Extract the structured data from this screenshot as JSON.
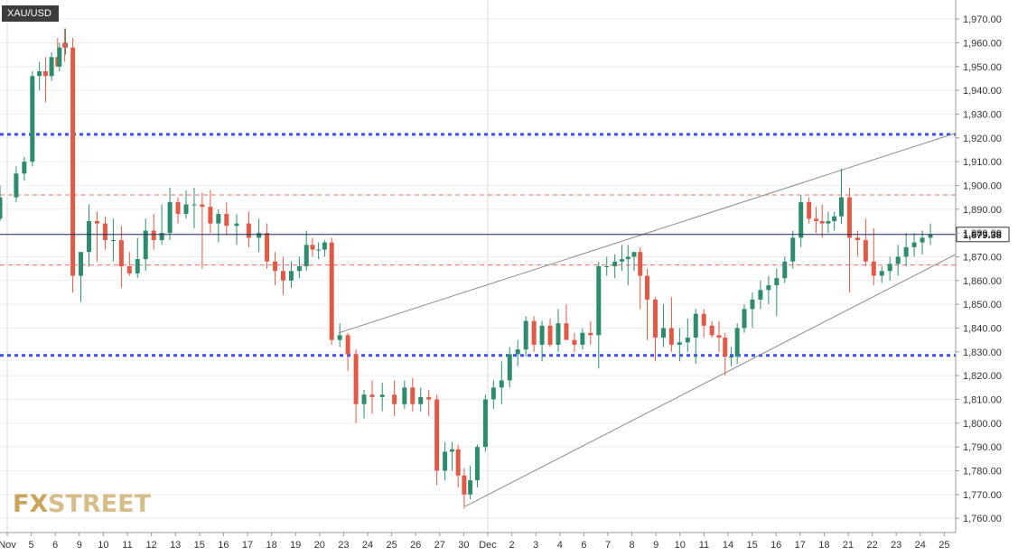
{
  "symbol": "XAU/USD",
  "last_price": "1,879.38",
  "watermark": {
    "fx": "FX",
    "street": "STREET"
  },
  "colors": {
    "up": "#2e8b6e",
    "down": "#e05a47",
    "blue_level": "#3d4ef5",
    "red_level": "#f07060",
    "trend": "#8a8a8a",
    "last": "#1e2a5a"
  },
  "chart_data": {
    "type": "candlestick",
    "ylim": [
      1754,
      1978
    ],
    "y_ticks": [
      "1,760.00",
      "1,770.00",
      "1,780.00",
      "1,790.00",
      "1,800.00",
      "1,810.00",
      "1,820.00",
      "1,830.00",
      "1,840.00",
      "1,850.00",
      "1,860.00",
      "1,870.00",
      "1,880.00",
      "1,890.00",
      "1,900.00",
      "1,910.00",
      "1,920.00",
      "1,930.00",
      "1,940.00",
      "1,950.00",
      "1,960.00",
      "1,970.00"
    ],
    "x_ticks": [
      "Nov",
      "5",
      "6",
      "9",
      "10",
      "11",
      "12",
      "13",
      "15",
      "16",
      "17",
      "18",
      "19",
      "20",
      "23",
      "24",
      "25",
      "26",
      "27",
      "30",
      "Dec",
      "2",
      "3",
      "4",
      "6",
      "7",
      "8",
      "9",
      "10",
      "11",
      "14",
      "15",
      "16",
      "17",
      "18",
      "21",
      "22",
      "23",
      "24",
      "25"
    ],
    "horizontal_levels": [
      {
        "value": 1921.5,
        "style": "blue-dotted"
      },
      {
        "value": 1828.5,
        "style": "blue-dotted"
      },
      {
        "value": 1896,
        "style": "red-dashed"
      },
      {
        "value": 1866.5,
        "style": "red-dashed"
      }
    ],
    "trendlines": [
      {
        "from": [
          "Nov 23",
          1838
        ],
        "to": [
          "Dec 25",
          1922
        ]
      },
      {
        "from": [
          "Nov 30",
          1765
        ],
        "to": [
          "Dec 25",
          1871
        ]
      }
    ],
    "candles": [
      {
        "t": "Nov 4",
        "o": 1886,
        "h": 1900,
        "l": 1885,
        "c": 1895
      },
      {
        "t": "Nov 5",
        "o": 1895,
        "h": 1908,
        "l": 1893,
        "c": 1905
      },
      {
        "t": "Nov 5",
        "o": 1905,
        "h": 1912,
        "l": 1902,
        "c": 1910
      },
      {
        "t": "Nov 5",
        "o": 1910,
        "h": 1948,
        "l": 1908,
        "c": 1946
      },
      {
        "t": "Nov 6",
        "o": 1946,
        "h": 1952,
        "l": 1940,
        "c": 1948
      },
      {
        "t": "Nov 6",
        "o": 1948,
        "h": 1954,
        "l": 1935,
        "c": 1946
      },
      {
        "t": "Nov 6",
        "o": 1946,
        "h": 1956,
        "l": 1944,
        "c": 1954
      },
      {
        "t": "Nov 6",
        "o": 1954,
        "h": 1962,
        "l": 1950,
        "c": 1950
      },
      {
        "t": "Nov 7",
        "o": 1950,
        "h": 1960,
        "l": 1948,
        "c": 1958
      },
      {
        "t": "Nov 8",
        "o": 1958,
        "h": 1966,
        "l": 1955,
        "c": 1960
      },
      {
        "t": "Nov 9",
        "o": 1960,
        "h": 1966,
        "l": 1952,
        "c": 1958
      },
      {
        "t": "Nov 9",
        "o": 1958,
        "h": 1962,
        "l": 1855,
        "c": 1862
      },
      {
        "t": "Nov 9",
        "o": 1862,
        "h": 1872,
        "l": 1851,
        "c": 1872
      },
      {
        "t": "Nov 10",
        "o": 1872,
        "h": 1892,
        "l": 1866,
        "c": 1885
      },
      {
        "t": "Nov 10",
        "o": 1885,
        "h": 1889,
        "l": 1868,
        "c": 1884
      },
      {
        "t": "Nov 10",
        "o": 1884,
        "h": 1887,
        "l": 1873,
        "c": 1877
      },
      {
        "t": "Nov 11",
        "o": 1877,
        "h": 1886,
        "l": 1868,
        "c": 1877
      },
      {
        "t": "Nov 11",
        "o": 1877,
        "h": 1883,
        "l": 1857,
        "c": 1866
      },
      {
        "t": "Nov 11",
        "o": 1866,
        "h": 1872,
        "l": 1862,
        "c": 1863
      },
      {
        "t": "Nov 12",
        "o": 1863,
        "h": 1878,
        "l": 1861,
        "c": 1869
      },
      {
        "t": "Nov 12",
        "o": 1869,
        "h": 1886,
        "l": 1864,
        "c": 1881
      },
      {
        "t": "Nov 12",
        "o": 1881,
        "h": 1888,
        "l": 1873,
        "c": 1877
      },
      {
        "t": "Nov 13",
        "o": 1877,
        "h": 1892,
        "l": 1875,
        "c": 1880
      },
      {
        "t": "Nov 13",
        "o": 1880,
        "h": 1899,
        "l": 1877,
        "c": 1893
      },
      {
        "t": "Nov 13",
        "o": 1893,
        "h": 1895,
        "l": 1884,
        "c": 1888
      },
      {
        "t": "Nov 15",
        "o": 1888,
        "h": 1898,
        "l": 1886,
        "c": 1892
      },
      {
        "t": "Nov 15",
        "o": 1892,
        "h": 1899,
        "l": 1882,
        "c": 1892
      },
      {
        "t": "Nov 15",
        "o": 1892,
        "h": 1897,
        "l": 1865,
        "c": 1891
      },
      {
        "t": "Nov 16",
        "o": 1891,
        "h": 1898,
        "l": 1880,
        "c": 1884
      },
      {
        "t": "Nov 16",
        "o": 1884,
        "h": 1890,
        "l": 1876,
        "c": 1888
      },
      {
        "t": "Nov 16",
        "o": 1888,
        "h": 1893,
        "l": 1879,
        "c": 1883
      },
      {
        "t": "Nov 17",
        "o": 1883,
        "h": 1888,
        "l": 1875,
        "c": 1884
      },
      {
        "t": "Nov 17",
        "o": 1884,
        "h": 1889,
        "l": 1874,
        "c": 1878
      },
      {
        "t": "Nov 18",
        "o": 1878,
        "h": 1886,
        "l": 1872,
        "c": 1880
      },
      {
        "t": "Nov 18",
        "o": 1880,
        "h": 1884,
        "l": 1865,
        "c": 1868
      },
      {
        "t": "Nov 18",
        "o": 1868,
        "h": 1872,
        "l": 1858,
        "c": 1864
      },
      {
        "t": "Nov 19",
        "o": 1864,
        "h": 1870,
        "l": 1854,
        "c": 1860
      },
      {
        "t": "Nov 19",
        "o": 1860,
        "h": 1868,
        "l": 1857,
        "c": 1864
      },
      {
        "t": "Nov 19",
        "o": 1864,
        "h": 1870,
        "l": 1861,
        "c": 1866
      },
      {
        "t": "Nov 20",
        "o": 1866,
        "h": 1881,
        "l": 1864,
        "c": 1875
      },
      {
        "t": "Nov 20",
        "o": 1875,
        "h": 1878,
        "l": 1870,
        "c": 1873
      },
      {
        "t": "Nov 20",
        "o": 1873,
        "h": 1876,
        "l": 1869,
        "c": 1873
      },
      {
        "t": "Nov 20",
        "o": 1873,
        "h": 1877,
        "l": 1870,
        "c": 1876
      },
      {
        "t": "Nov 23",
        "o": 1876,
        "h": 1878,
        "l": 1833,
        "c": 1835
      },
      {
        "t": "Nov 23",
        "o": 1835,
        "h": 1842,
        "l": 1832,
        "c": 1837
      },
      {
        "t": "Nov 23",
        "o": 1837,
        "h": 1838,
        "l": 1822,
        "c": 1829
      },
      {
        "t": "Nov 24",
        "o": 1829,
        "h": 1831,
        "l": 1800,
        "c": 1808
      },
      {
        "t": "Nov 24",
        "o": 1808,
        "h": 1814,
        "l": 1802,
        "c": 1812
      },
      {
        "t": "Nov 24",
        "o": 1812,
        "h": 1818,
        "l": 1804,
        "c": 1811
      },
      {
        "t": "Nov 25",
        "o": 1811,
        "h": 1817,
        "l": 1805,
        "c": 1812
      },
      {
        "t": "Nov 25",
        "o": 1812,
        "h": 1818,
        "l": 1803,
        "c": 1808
      },
      {
        "t": "Nov 26",
        "o": 1808,
        "h": 1818,
        "l": 1806,
        "c": 1815
      },
      {
        "t": "Nov 26",
        "o": 1815,
        "h": 1819,
        "l": 1805,
        "c": 1808
      },
      {
        "t": "Nov 26",
        "o": 1808,
        "h": 1815,
        "l": 1805,
        "c": 1811
      },
      {
        "t": "Nov 27",
        "o": 1811,
        "h": 1814,
        "l": 1803,
        "c": 1810
      },
      {
        "t": "Nov 27",
        "o": 1810,
        "h": 1812,
        "l": 1774,
        "c": 1780
      },
      {
        "t": "Nov 27",
        "o": 1780,
        "h": 1792,
        "l": 1776,
        "c": 1788
      },
      {
        "t": "Nov 30",
        "o": 1788,
        "h": 1792,
        "l": 1780,
        "c": 1789
      },
      {
        "t": "Nov 30",
        "o": 1789,
        "h": 1791,
        "l": 1773,
        "c": 1778
      },
      {
        "t": "Nov 30",
        "o": 1778,
        "h": 1781,
        "l": 1764,
        "c": 1770
      },
      {
        "t": "Nov 30",
        "o": 1770,
        "h": 1782,
        "l": 1768,
        "c": 1776
      },
      {
        "t": "Dec 1",
        "o": 1776,
        "h": 1791,
        "l": 1773,
        "c": 1790
      },
      {
        "t": "Dec 1",
        "o": 1790,
        "h": 1812,
        "l": 1788,
        "c": 1810
      },
      {
        "t": "Dec 1",
        "o": 1810,
        "h": 1818,
        "l": 1806,
        "c": 1815
      },
      {
        "t": "Dec 2",
        "o": 1815,
        "h": 1826,
        "l": 1808,
        "c": 1818
      },
      {
        "t": "Dec 2",
        "o": 1818,
        "h": 1832,
        "l": 1815,
        "c": 1829
      },
      {
        "t": "Dec 2",
        "o": 1829,
        "h": 1835,
        "l": 1824,
        "c": 1831
      },
      {
        "t": "Dec 3",
        "o": 1831,
        "h": 1845,
        "l": 1828,
        "c": 1843
      },
      {
        "t": "Dec 3",
        "o": 1843,
        "h": 1845,
        "l": 1830,
        "c": 1833
      },
      {
        "t": "Dec 3",
        "o": 1833,
        "h": 1843,
        "l": 1826,
        "c": 1841
      },
      {
        "t": "Dec 4",
        "o": 1841,
        "h": 1844,
        "l": 1832,
        "c": 1833
      },
      {
        "t": "Dec 4",
        "o": 1833,
        "h": 1848,
        "l": 1830,
        "c": 1842
      },
      {
        "t": "Dec 4",
        "o": 1842,
        "h": 1850,
        "l": 1836,
        "c": 1835
      },
      {
        "t": "Dec 6",
        "o": 1835,
        "h": 1838,
        "l": 1830,
        "c": 1833
      },
      {
        "t": "Dec 6",
        "o": 1833,
        "h": 1840,
        "l": 1831,
        "c": 1838
      },
      {
        "t": "Dec 6",
        "o": 1838,
        "h": 1843,
        "l": 1833,
        "c": 1837
      },
      {
        "t": "Dec 7",
        "o": 1837,
        "h": 1868,
        "l": 1823,
        "c": 1866
      },
      {
        "t": "Dec 7",
        "o": 1866,
        "h": 1870,
        "l": 1862,
        "c": 1866
      },
      {
        "t": "Dec 7",
        "o": 1866,
        "h": 1871,
        "l": 1861,
        "c": 1868
      },
      {
        "t": "Dec 8",
        "o": 1868,
        "h": 1875,
        "l": 1864,
        "c": 1869
      },
      {
        "t": "Dec 8",
        "o": 1869,
        "h": 1875,
        "l": 1858,
        "c": 1870
      },
      {
        "t": "Dec 8",
        "o": 1870,
        "h": 1872,
        "l": 1864,
        "c": 1872
      },
      {
        "t": "Dec 8",
        "o": 1872,
        "h": 1874,
        "l": 1848,
        "c": 1862
      },
      {
        "t": "Dec 9",
        "o": 1862,
        "h": 1865,
        "l": 1835,
        "c": 1852
      },
      {
        "t": "Dec 9",
        "o": 1852,
        "h": 1853,
        "l": 1826,
        "c": 1836
      },
      {
        "t": "Dec 9",
        "o": 1836,
        "h": 1850,
        "l": 1832,
        "c": 1840
      },
      {
        "t": "Dec 10",
        "o": 1840,
        "h": 1853,
        "l": 1830,
        "c": 1833
      },
      {
        "t": "Dec 10",
        "o": 1833,
        "h": 1840,
        "l": 1826,
        "c": 1834
      },
      {
        "t": "Dec 10",
        "o": 1834,
        "h": 1844,
        "l": 1830,
        "c": 1836
      },
      {
        "t": "Dec 11",
        "o": 1836,
        "h": 1848,
        "l": 1825,
        "c": 1846
      },
      {
        "t": "Dec 11",
        "o": 1846,
        "h": 1848,
        "l": 1836,
        "c": 1841
      },
      {
        "t": "Dec 11",
        "o": 1841,
        "h": 1843,
        "l": 1836,
        "c": 1837
      },
      {
        "t": "Dec 14",
        "o": 1837,
        "h": 1843,
        "l": 1830,
        "c": 1836
      },
      {
        "t": "Dec 14",
        "o": 1836,
        "h": 1838,
        "l": 1820,
        "c": 1828
      },
      {
        "t": "Dec 14",
        "o": 1828,
        "h": 1832,
        "l": 1824,
        "c": 1828
      },
      {
        "t": "Dec 14",
        "o": 1828,
        "h": 1842,
        "l": 1825,
        "c": 1840
      },
      {
        "t": "Dec 15",
        "o": 1840,
        "h": 1850,
        "l": 1838,
        "c": 1848
      },
      {
        "t": "Dec 15",
        "o": 1848,
        "h": 1855,
        "l": 1840,
        "c": 1852
      },
      {
        "t": "Dec 15",
        "o": 1852,
        "h": 1860,
        "l": 1848,
        "c": 1856
      },
      {
        "t": "Dec 16",
        "o": 1856,
        "h": 1862,
        "l": 1850,
        "c": 1858
      },
      {
        "t": "Dec 16",
        "o": 1858,
        "h": 1865,
        "l": 1845,
        "c": 1861
      },
      {
        "t": "Dec 16",
        "o": 1861,
        "h": 1870,
        "l": 1859,
        "c": 1868
      },
      {
        "t": "Dec 17",
        "o": 1868,
        "h": 1881,
        "l": 1865,
        "c": 1878
      },
      {
        "t": "Dec 17",
        "o": 1878,
        "h": 1896,
        "l": 1874,
        "c": 1893
      },
      {
        "t": "Dec 17",
        "o": 1893,
        "h": 1895,
        "l": 1884,
        "c": 1886
      },
      {
        "t": "Dec 18",
        "o": 1886,
        "h": 1891,
        "l": 1880,
        "c": 1885
      },
      {
        "t": "Dec 18",
        "o": 1885,
        "h": 1892,
        "l": 1878,
        "c": 1884
      },
      {
        "t": "Dec 18",
        "o": 1884,
        "h": 1889,
        "l": 1880,
        "c": 1885
      },
      {
        "t": "Dec 18",
        "o": 1885,
        "h": 1889,
        "l": 1881,
        "c": 1887
      },
      {
        "t": "Dec 21",
        "o": 1887,
        "h": 1907,
        "l": 1884,
        "c": 1895
      },
      {
        "t": "Dec 21",
        "o": 1895,
        "h": 1899,
        "l": 1855,
        "c": 1878
      },
      {
        "t": "Dec 21",
        "o": 1878,
        "h": 1881,
        "l": 1870,
        "c": 1877
      },
      {
        "t": "Dec 22",
        "o": 1877,
        "h": 1886,
        "l": 1866,
        "c": 1868
      },
      {
        "t": "Dec 22",
        "o": 1868,
        "h": 1882,
        "l": 1858,
        "c": 1862
      },
      {
        "t": "Dec 22",
        "o": 1862,
        "h": 1866,
        "l": 1859,
        "c": 1864
      },
      {
        "t": "Dec 23",
        "o": 1864,
        "h": 1870,
        "l": 1860,
        "c": 1867
      },
      {
        "t": "Dec 23",
        "o": 1867,
        "h": 1875,
        "l": 1862,
        "c": 1870
      },
      {
        "t": "Dec 23",
        "o": 1870,
        "h": 1880,
        "l": 1866,
        "c": 1874
      },
      {
        "t": "Dec 24",
        "o": 1874,
        "h": 1880,
        "l": 1870,
        "c": 1876
      },
      {
        "t": "Dec 24",
        "o": 1876,
        "h": 1881,
        "l": 1871,
        "c": 1878
      },
      {
        "t": "Dec 24",
        "o": 1878,
        "h": 1884,
        "l": 1875,
        "c": 1879.38
      }
    ]
  }
}
